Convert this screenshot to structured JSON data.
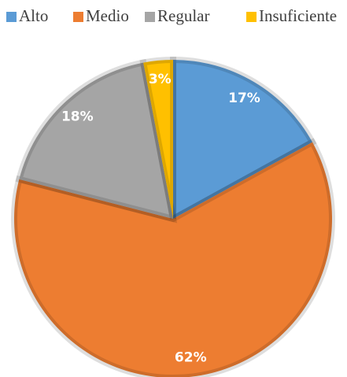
{
  "chart_data": {
    "type": "pie",
    "categories": [
      "Alto",
      "Medio",
      "Regular",
      "Insuficiente"
    ],
    "values": [
      17,
      62,
      18,
      3
    ],
    "value_labels": [
      "17%",
      "62%",
      "18%",
      "3%"
    ],
    "colors": [
      "#5b9bd5",
      "#ed7d31",
      "#a5a5a5",
      "#ffc000"
    ],
    "legend": "top"
  }
}
